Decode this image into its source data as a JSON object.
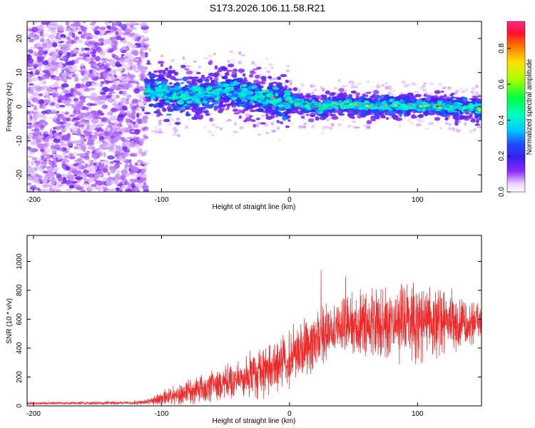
{
  "title": "S173.2026.106.11.58.R21",
  "chart_data": [
    {
      "type": "heatmap",
      "name": "spectrogram",
      "xlabel": "Height of straight line (km)",
      "ylabel": "Frequency (Hz)",
      "xlim": [
        -205,
        150
      ],
      "ylim": [
        -25,
        25
      ],
      "xticks": [
        -200,
        -100,
        0,
        100
      ],
      "yticks": [
        -20,
        -10,
        0,
        10,
        20
      ],
      "colorbar": {
        "label": "Normalized spectral amplitude",
        "range": [
          0,
          0.95
        ],
        "ticks": [
          0.0,
          0.2,
          0.4,
          0.6,
          0.8
        ],
        "tick_labels": [
          "0.0",
          "0.2",
          "0.4",
          "0.6",
          "0.8"
        ]
      },
      "ridge": {
        "x": [
          -110,
          -100,
          -90,
          -80,
          -70,
          -60,
          -50,
          -40,
          -30,
          -20,
          -10,
          0,
          10,
          20,
          25,
          30,
          40,
          50,
          60,
          70,
          80,
          90,
          100,
          110,
          120,
          130,
          140,
          150
        ],
        "y": [
          5,
          4,
          3.5,
          3,
          3,
          3.5,
          5,
          4,
          3,
          2.5,
          2,
          1.5,
          0.5,
          0.5,
          -1,
          0.5,
          0.8,
          0.5,
          0.3,
          0.3,
          0.5,
          0.3,
          0.3,
          0.2,
          0,
          -0.2,
          -0.5,
          -0.8
        ]
      }
    },
    {
      "type": "line",
      "name": "snr",
      "xlabel": "Height of straight line (km)",
      "ylabel": "SNR (10 * v/v)",
      "xlim": [
        -205,
        150
      ],
      "ylim": [
        0,
        1180
      ],
      "xticks": [
        -200,
        -100,
        0,
        100
      ],
      "yticks": [
        0,
        200,
        400,
        600,
        800,
        1000
      ],
      "color": "#ee2a2a",
      "envelope": {
        "x": [
          -205,
          -120,
          -110,
          -100,
          -80,
          -60,
          -40,
          -20,
          0,
          10,
          20,
          30,
          40,
          60,
          80,
          100,
          120,
          140,
          150
        ],
        "mean": [
          18,
          20,
          30,
          55,
          90,
          140,
          190,
          240,
          320,
          400,
          470,
          530,
          550,
          570,
          580,
          580,
          570,
          570,
          570
        ],
        "spread": [
          8,
          10,
          20,
          40,
          70,
          90,
          110,
          140,
          160,
          170,
          170,
          160,
          170,
          190,
          210,
          220,
          200,
          150,
          110
        ]
      }
    }
  ]
}
